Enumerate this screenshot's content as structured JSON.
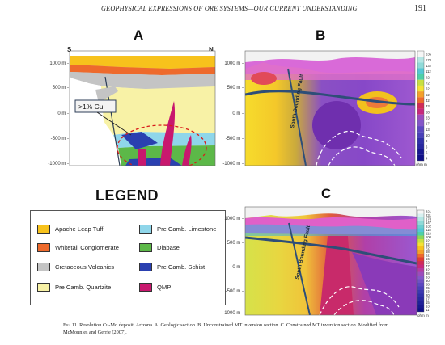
{
  "header": {
    "running_head": "GEOPHYSICAL EXPRESSIONS OF ORE SYSTEMS—OUR CURRENT UNDERSTANDING",
    "page_number": "191"
  },
  "panels": {
    "a": {
      "letter": "A",
      "south": "S",
      "north": "N",
      "callout": ">1% Cu",
      "elevations": [
        "1000 m -",
        "500 m -",
        "0 m -",
        "-500 m -",
        "-1000 m -"
      ]
    },
    "b": {
      "letter": "B",
      "fault_label": "South Bounding Fault",
      "elevations": [
        "1000 m -",
        "500 m -",
        "0 m -",
        "-500 m -",
        "-1000 m -"
      ],
      "scale_values": [
        "235",
        "178",
        "132",
        "112",
        "92",
        "72",
        "62",
        "52",
        "42",
        "33",
        "28",
        "23",
        "17",
        "13",
        "10",
        "8",
        "6",
        "5",
        "4"
      ],
      "scale_unit": "ohm m"
    },
    "c": {
      "letter": "C",
      "fault_label": "South Bounding Fault",
      "elevations": [
        "1000 m -",
        "500 m -",
        "0 m -",
        "-500 m -",
        "-1000 m -"
      ],
      "scale_values": [
        "321",
        "231",
        "178",
        "147",
        "132",
        "118",
        "112",
        "100",
        "92",
        "82",
        "72",
        "68",
        "62",
        "56",
        "52",
        "47",
        "42",
        "38",
        "33",
        "30",
        "28",
        "25",
        "23",
        "20",
        "17",
        "15",
        "13",
        "11"
      ],
      "scale_unit": "ohm m"
    }
  },
  "legend": {
    "title": "LEGEND",
    "items": [
      {
        "label": "Apache Leap Tuff",
        "color": "#f7c21c"
      },
      {
        "label": "Whitetail Conglomerate",
        "color": "#ee6a2c"
      },
      {
        "label": "Cretaceous Volcanics",
        "color": "#c4c4c4"
      },
      {
        "label": "Pre Camb. Quartzite",
        "color": "#f8f2a6"
      },
      {
        "label": "Pre Camb. Limestone",
        "color": "#8fd6ea"
      },
      {
        "label": "Diabase",
        "color": "#5cb848"
      },
      {
        "label": "Pre Camb. Schist",
        "color": "#2a40b0"
      },
      {
        "label": "QMP",
        "color": "#c8186e"
      }
    ]
  },
  "caption": {
    "fig": "Fig. 11.",
    "text": "Resolution Cu-Mo deposit, Arizona. A. Geologic section. B. Unconstrained MT inversion section. C. Constrained MT inversion section. Modified from McMonnies and Gerrie (2007)."
  }
}
